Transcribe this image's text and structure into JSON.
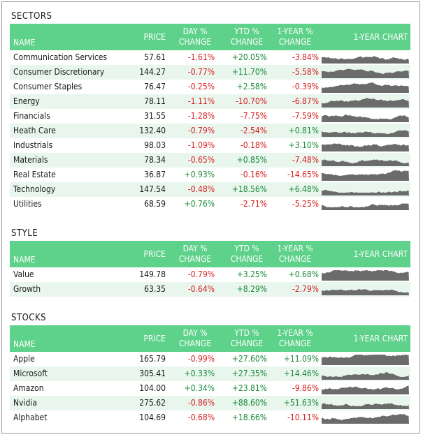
{
  "headers": {
    "name": "NAME",
    "price": "PRICE",
    "day_1": "DAY %",
    "day_2": "CHANGE",
    "ytd_1": "YTD %",
    "ytd_2": "CHANGE",
    "yr_1": "1-YEAR %",
    "yr_2": "CHANGE",
    "chart": "1-YEAR CHART"
  },
  "colors": {
    "header_bg": "#5ed18a",
    "alt_row": "#e9f6ee",
    "negative": "#d81f1f",
    "positive": "#1a8a3a",
    "sparkline": "#6b6b6b"
  },
  "sections": [
    {
      "title": "SECTORS",
      "rows": [
        {
          "name": "Communication Services",
          "price": "57.61",
          "day": "-1.61%",
          "ytd": "+20.05%",
          "yr": "-3.84%"
        },
        {
          "name": "Consumer Discretionary",
          "price": "144.27",
          "day": "-0.77%",
          "ytd": "+11.70%",
          "yr": "-5.58%"
        },
        {
          "name": "Consumer Staples",
          "price": "76.47",
          "day": "-0.25%",
          "ytd": "+2.58%",
          "yr": "-0.39%"
        },
        {
          "name": "Energy",
          "price": "78.11",
          "day": "-1.11%",
          "ytd": "-10.70%",
          "yr": "-6.87%"
        },
        {
          "name": "Financials",
          "price": "31.55",
          "day": "-1.28%",
          "ytd": "-7.75%",
          "yr": "-7.59%"
        },
        {
          "name": "Heath Care",
          "price": "132.40",
          "day": "-0.79%",
          "ytd": "-2.54%",
          "yr": "+0.81%"
        },
        {
          "name": "Industrials",
          "price": "98.03",
          "day": "-1.09%",
          "ytd": "-0.18%",
          "yr": "+3.10%"
        },
        {
          "name": "Materials",
          "price": "78.34",
          "day": "-0.65%",
          "ytd": "+0.85%",
          "yr": "-7.48%"
        },
        {
          "name": "Real Estate",
          "price": "36.87",
          "day": "+0.93%",
          "ytd": "-0.16%",
          "yr": "-14.65%"
        },
        {
          "name": "Technology",
          "price": "147.54",
          "day": "-0.48%",
          "ytd": "+18.56%",
          "yr": "+6.48%"
        },
        {
          "name": "Utilities",
          "price": "68.59",
          "day": "+0.76%",
          "ytd": "-2.71%",
          "yr": "-5.25%"
        }
      ]
    },
    {
      "title": "STYLE",
      "rows": [
        {
          "name": "Value",
          "price": "149.78",
          "day": "-0.79%",
          "ytd": "+3.25%",
          "yr": "+0.68%"
        },
        {
          "name": "Growth",
          "price": "63.35",
          "day": "-0.64%",
          "ytd": "+8.29%",
          "yr": "-2.79%"
        }
      ]
    },
    {
      "title": "STOCKS",
      "rows": [
        {
          "name": "Apple",
          "price": "165.79",
          "day": "-0.99%",
          "ytd": "+27.60%",
          "yr": "+11.09%"
        },
        {
          "name": "Microsoft",
          "price": "305.41",
          "day": "+0.33%",
          "ytd": "+27.35%",
          "yr": "+14.46%"
        },
        {
          "name": "Amazon",
          "price": "104.00",
          "day": "+0.34%",
          "ytd": "+23.81%",
          "yr": "-9.86%"
        },
        {
          "name": "Nvidia",
          "price": "275.62",
          "day": "-0.86%",
          "ytd": "+88.60%",
          "yr": "+51.63%"
        },
        {
          "name": "Alphabet",
          "price": "104.69",
          "day": "-0.68%",
          "ytd": "+18.66%",
          "yr": "-10.11%"
        }
      ]
    }
  ]
}
